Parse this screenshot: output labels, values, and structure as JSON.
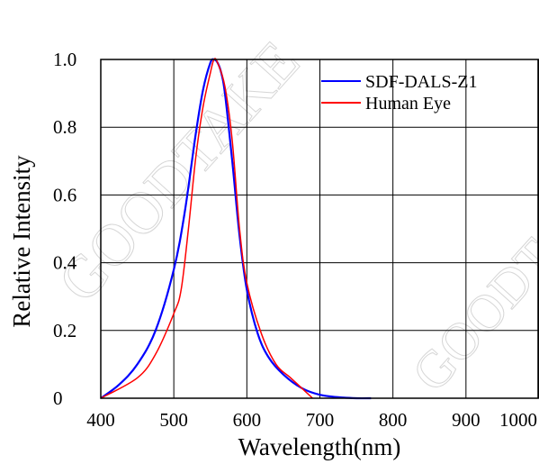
{
  "chart_data": {
    "type": "line",
    "title": "",
    "xlabel": "Wavelength(nm)",
    "ylabel": "Relative  Intensity",
    "xlim": [
      400,
      1000
    ],
    "ylim": [
      0,
      1.0
    ],
    "x_ticks": [
      400,
      500,
      600,
      700,
      800,
      900,
      1000
    ],
    "x_tick_labels": [
      "400",
      "500",
      "600",
      "700",
      "800",
      "900",
      "1000"
    ],
    "y_ticks": [
      0,
      0.2,
      0.4,
      0.6,
      0.8,
      1.0
    ],
    "y_tick_labels": [
      "0",
      "0.2",
      "0.4",
      "0.6",
      "0.8",
      "1.0"
    ],
    "grid": true,
    "legend_position": "top-right",
    "watermark": "GOODTAKE",
    "series": [
      {
        "name": "SDF-DALS-Z1",
        "color": "#0000ff",
        "x": [
          400,
          425,
          450,
          475,
          500,
          515,
          530,
          540,
          550,
          555,
          560,
          565,
          570,
          580,
          590,
          600,
          615,
          630,
          650,
          675,
          700,
          725,
          750,
          770
        ],
        "y": [
          0.0,
          0.04,
          0.1,
          0.2,
          0.38,
          0.55,
          0.78,
          0.91,
          0.99,
          1.0,
          0.99,
          0.96,
          0.9,
          0.7,
          0.48,
          0.32,
          0.19,
          0.12,
          0.07,
          0.03,
          0.01,
          0.003,
          0.0,
          0.0
        ]
      },
      {
        "name": "Human Eye",
        "color": "#ff0000",
        "x": [
          400,
          450,
          475,
          500,
          510,
          520,
          530,
          540,
          550,
          555,
          560,
          570,
          580,
          590,
          600,
          620,
          640,
          660,
          680,
          690
        ],
        "y": [
          0.0,
          0.06,
          0.13,
          0.25,
          0.32,
          0.5,
          0.71,
          0.86,
          0.96,
          1.0,
          0.99,
          0.92,
          0.76,
          0.5,
          0.34,
          0.19,
          0.1,
          0.06,
          0.02,
          0.0
        ]
      }
    ]
  }
}
